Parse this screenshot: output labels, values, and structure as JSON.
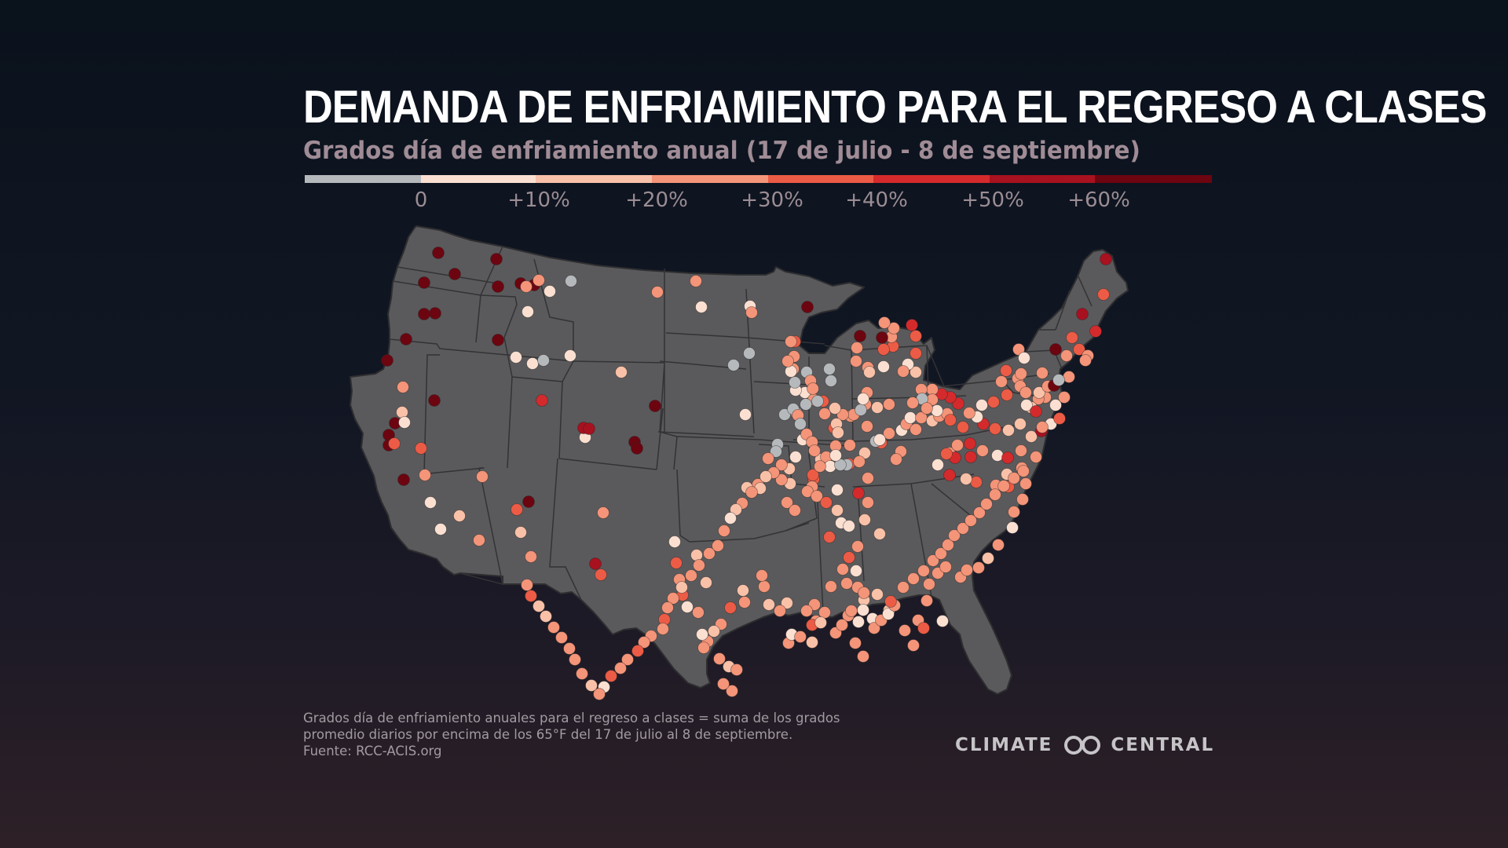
{
  "title": "DEMANDA DE ENFRIAMIENTO PARA EL REGRESO A CLASES",
  "subtitle": "Grados día de enfriamiento anual (17 de julio - 8 de septiembre)",
  "legend": {
    "colors": [
      "#b6b9bc",
      "#fbe0d2",
      "#f9c1a8",
      "#f49478",
      "#ec5b45",
      "#d42a2c",
      "#a8111f",
      "#6c0510"
    ],
    "labels": [
      "0",
      "+10%",
      "+20%",
      "+30%",
      "+40%",
      "+50%",
      "+60%"
    ]
  },
  "map": {
    "land_color": "#5a5a5c",
    "border_color": "#3a3a3c",
    "station_levels_note": "levels index into legend.colors (0 = grey, 7 = darkest red)"
  },
  "footnote": {
    "line1": "Grados día de enfriamiento anuales para el regreso a clases = suma de los grados",
    "line2": "promedio diarios por encima de los 65°F del 17 de julio al 8 de septiembre.",
    "line3": "Fuente: RCC-ACIS.org"
  },
  "logo": {
    "left": "CLIMATE",
    "right": "CENTRAL",
    "icon": "climate-central-logo-icon"
  }
}
